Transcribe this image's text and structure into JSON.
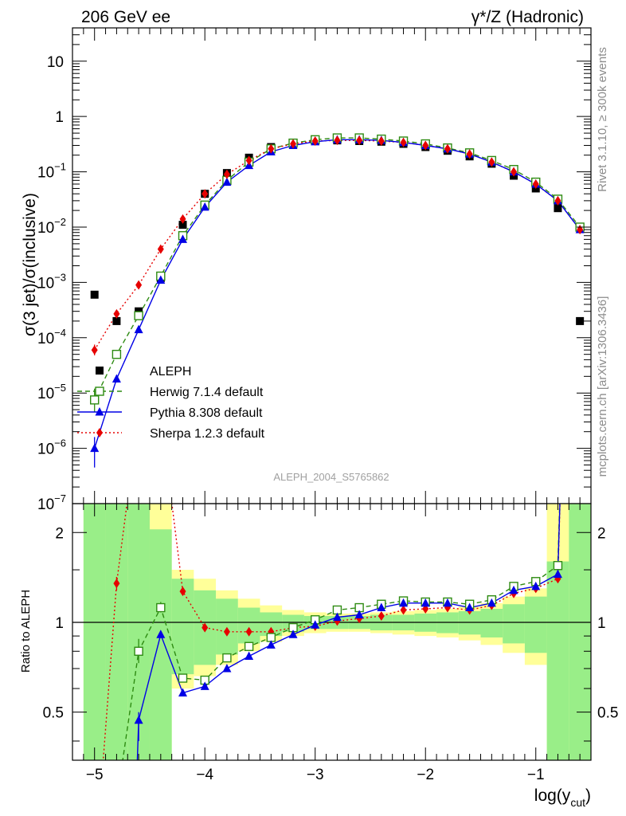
{
  "header": {
    "left": "206 GeV ee",
    "right": "γ*/Z (Hadronic)"
  },
  "side_labels": {
    "rivet": "Rivet 3.1.10, ≥ 300k events",
    "mcplots": "mcplots.cern.ch [arXiv:1306.3436]"
  },
  "watermark": "ALEPH_2004_S5765862",
  "chart_data": [
    {
      "type": "scatter",
      "panel": "main",
      "ylabel": "σ(3 jet)/σ(inclusive)",
      "xlabel": "",
      "yscale": "log",
      "ylim": [
        1e-07,
        40
      ],
      "xlim": [
        -5.2,
        -0.5
      ],
      "yticks": [
        {
          "v": 1e-07,
          "base": "10",
          "exp": "−7"
        },
        {
          "v": 1e-06,
          "base": "10",
          "exp": "−6"
        },
        {
          "v": 1e-05,
          "base": "10",
          "exp": "−5"
        },
        {
          "v": 0.0001,
          "base": "10",
          "exp": "−4"
        },
        {
          "v": 0.001,
          "base": "10",
          "exp": "−3"
        },
        {
          "v": 0.01,
          "base": "10",
          "exp": "−2"
        },
        {
          "v": 0.1,
          "base": "10",
          "exp": "−1"
        },
        {
          "v": 1,
          "base": "1",
          "exp": ""
        },
        {
          "v": 10,
          "base": "10",
          "exp": ""
        }
      ],
      "legend_position": "lower-left",
      "x": [
        -5.0,
        -4.8,
        -4.6,
        -4.4,
        -4.2,
        -4.0,
        -3.8,
        -3.6,
        -3.4,
        -3.2,
        -3.0,
        -2.8,
        -2.6,
        -2.4,
        -2.2,
        -2.0,
        -1.8,
        -1.6,
        -1.4,
        -1.2,
        -1.0,
        -0.8,
        -0.6
      ],
      "series": [
        {
          "name": "ALEPH",
          "marker": "square-filled",
          "color": "#000000",
          "values": [
            0.0006,
            0.0002,
            0.0003,
            0.0012,
            0.011,
            0.04,
            0.095,
            0.18,
            0.28,
            0.32,
            0.36,
            0.37,
            0.36,
            0.35,
            0.32,
            0.28,
            0.24,
            0.19,
            0.14,
            0.085,
            0.05,
            0.022,
            0.0002
          ]
        },
        {
          "name": "Herwig 7.1.4 default",
          "marker": "square-open",
          "line": "dashed",
          "color": "#2e8b12",
          "values": [
            7.5e-06,
            5e-05,
            0.00025,
            0.0013,
            0.007,
            0.025,
            0.07,
            0.15,
            0.26,
            0.33,
            0.38,
            0.41,
            0.41,
            0.39,
            0.36,
            0.32,
            0.27,
            0.22,
            0.16,
            0.11,
            0.065,
            0.032,
            0.01
          ]
        },
        {
          "name": "Pythia 8.308 default",
          "marker": "triangle-filled",
          "line": "solid",
          "color": "#0000e6",
          "values": [
            1e-06,
            1.8e-05,
            0.00014,
            0.0011,
            0.006,
            0.023,
            0.065,
            0.13,
            0.23,
            0.3,
            0.35,
            0.38,
            0.38,
            0.37,
            0.34,
            0.3,
            0.26,
            0.21,
            0.15,
            0.1,
            0.06,
            0.03,
            0.009
          ]
        },
        {
          "name": "Sherpa 1.2.3 default",
          "marker": "diamond-filled",
          "line": "dotted",
          "color": "#e60000",
          "values": [
            6e-05,
            0.00027,
            0.0009,
            0.004,
            0.014,
            0.04,
            0.09,
            0.16,
            0.26,
            0.32,
            0.36,
            0.37,
            0.37,
            0.36,
            0.34,
            0.3,
            0.26,
            0.21,
            0.15,
            0.1,
            0.06,
            0.03,
            0.009
          ]
        }
      ],
      "error_bars": {
        "Herwig 7.1.4 default": [
          [
            -5.0,
            4.5e-06,
            1.2e-05
          ]
        ],
        "Pythia 8.308 default": [
          [
            -5.0,
            4.5e-07,
            1.6e-06
          ]
        ],
        "Sherpa 1.2.3 default": [
          [
            -5.0,
            4.8e-05,
            7.5e-05
          ]
        ]
      }
    },
    {
      "type": "line",
      "panel": "ratio",
      "ylabel": "Ratio to ALEPH",
      "xlabel": "log(y_cut)",
      "xlabel_base": "log(y",
      "xlabel_sub": "cut",
      "xlabel_end": ")",
      "yscale": "log",
      "ylim": [
        0.345,
        2.5
      ],
      "xlim": [
        -5.2,
        -0.5
      ],
      "yticks": [
        {
          "v": 0.5,
          "label": "0.5"
        },
        {
          "v": 1,
          "label": "1"
        },
        {
          "v": 2,
          "label": "2"
        }
      ],
      "xticks": [
        {
          "v": -5,
          "label": "−5"
        },
        {
          "v": -4,
          "label": "−4"
        },
        {
          "v": -3,
          "label": "−3"
        },
        {
          "v": -2,
          "label": "−2"
        },
        {
          "v": -1,
          "label": "−1"
        }
      ],
      "uncertainty_bands": {
        "yellow_color": "#ffff99",
        "green_color": "#99ee88",
        "bins": [
          {
            "x0": -5.1,
            "x1": -4.9,
            "y0": 0.2,
            "y1": 5,
            "g0": 0.2,
            "g1": 5
          },
          {
            "x0": -4.9,
            "x1": -4.7,
            "y0": 0.2,
            "y1": 5,
            "g0": 0.2,
            "g1": 5
          },
          {
            "x0": -4.7,
            "x1": -4.5,
            "y0": 0.2,
            "y1": 5,
            "g0": 0.2,
            "g1": 5
          },
          {
            "x0": -4.5,
            "x1": -4.3,
            "y0": 0.2,
            "y1": 5,
            "g0": 0.2,
            "g1": 2.05
          },
          {
            "x0": -4.3,
            "x1": -4.1,
            "y0": 0.6,
            "y1": 1.5,
            "g0": 0.67,
            "g1": 1.4
          },
          {
            "x0": -4.1,
            "x1": -3.9,
            "y0": 0.66,
            "y1": 1.4,
            "g0": 0.72,
            "g1": 1.28
          },
          {
            "x0": -3.9,
            "x1": -3.7,
            "y0": 0.72,
            "y1": 1.28,
            "g0": 0.78,
            "g1": 1.2
          },
          {
            "x0": -3.7,
            "x1": -3.5,
            "y0": 0.8,
            "y1": 1.2,
            "g0": 0.85,
            "g1": 1.12
          },
          {
            "x0": -3.5,
            "x1": -3.3,
            "y0": 0.86,
            "y1": 1.14,
            "g0": 0.9,
            "g1": 1.08
          },
          {
            "x0": -3.3,
            "x1": -3.1,
            "y0": 0.9,
            "y1": 1.1,
            "g0": 0.93,
            "g1": 1.06
          },
          {
            "x0": -3.1,
            "x1": -2.9,
            "y0": 0.92,
            "y1": 1.08,
            "g0": 0.95,
            "g1": 1.05
          },
          {
            "x0": -2.9,
            "x1": -2.7,
            "y0": 0.93,
            "y1": 1.07,
            "g0": 0.95,
            "g1": 1.05
          },
          {
            "x0": -2.7,
            "x1": -2.5,
            "y0": 0.93,
            "y1": 1.07,
            "g0": 0.95,
            "g1": 1.05
          },
          {
            "x0": -2.5,
            "x1": -2.3,
            "y0": 0.92,
            "y1": 1.08,
            "g0": 0.94,
            "g1": 1.06
          },
          {
            "x0": -2.3,
            "x1": -2.1,
            "y0": 0.91,
            "y1": 1.09,
            "g0": 0.94,
            "g1": 1.06
          },
          {
            "x0": -2.1,
            "x1": -1.9,
            "y0": 0.9,
            "y1": 1.1,
            "g0": 0.93,
            "g1": 1.07
          },
          {
            "x0": -1.9,
            "x1": -1.7,
            "y0": 0.89,
            "y1": 1.11,
            "g0": 0.92,
            "g1": 1.08
          },
          {
            "x0": -1.7,
            "x1": -1.5,
            "y0": 0.87,
            "y1": 1.13,
            "g0": 0.91,
            "g1": 1.09
          },
          {
            "x0": -1.5,
            "x1": -1.3,
            "y0": 0.84,
            "y1": 1.16,
            "g0": 0.89,
            "g1": 1.11
          },
          {
            "x0": -1.3,
            "x1": -1.1,
            "y0": 0.79,
            "y1": 1.22,
            "g0": 0.85,
            "g1": 1.15
          },
          {
            "x0": -1.1,
            "x1": -0.9,
            "y0": 0.72,
            "y1": 1.3,
            "g0": 0.79,
            "g1": 1.22
          },
          {
            "x0": -0.9,
            "x1": -0.7,
            "y0": 0.2,
            "y1": 5,
            "g0": 0.2,
            "g1": 1.6
          },
          {
            "x0": -0.7,
            "x1": -0.5,
            "y0": 0.2,
            "y1": 5,
            "g0": 0.2,
            "g1": 5
          }
        ]
      },
      "series": [
        {
          "name": "Herwig 7.1.4 default",
          "points": [
            [
              -4.8,
              0.25
            ],
            [
              -4.6,
              0.8
            ],
            [
              -4.4,
              1.12
            ],
            [
              -4.2,
              0.65
            ],
            [
              -4.0,
              0.64
            ],
            [
              -3.8,
              0.76
            ],
            [
              -3.6,
              0.83
            ],
            [
              -3.4,
              0.89
            ],
            [
              -3.2,
              0.96
            ],
            [
              -3.0,
              1.02
            ],
            [
              -2.8,
              1.1
            ],
            [
              -2.6,
              1.12
            ],
            [
              -2.4,
              1.15
            ],
            [
              -2.2,
              1.18
            ],
            [
              -2.0,
              1.17
            ],
            [
              -1.8,
              1.17
            ],
            [
              -1.6,
              1.15
            ],
            [
              -1.4,
              1.19
            ],
            [
              -1.2,
              1.32
            ],
            [
              -1.0,
              1.37
            ],
            [
              -0.8,
              1.55
            ],
            [
              -0.72,
              15
            ]
          ],
          "errors": [
            [
              -4.6,
              0.73,
              0.88
            ],
            [
              -4.4,
              1.08,
              1.17
            ]
          ]
        },
        {
          "name": "Pythia 8.308 default",
          "points": [
            [
              -4.62,
              0.28
            ],
            [
              -4.6,
              0.47
            ],
            [
              -4.4,
              0.91
            ],
            [
              -4.2,
              0.58
            ],
            [
              -4.0,
              0.61
            ],
            [
              -3.8,
              0.7
            ],
            [
              -3.6,
              0.77
            ],
            [
              -3.4,
              0.84
            ],
            [
              -3.2,
              0.91
            ],
            [
              -3.0,
              0.98
            ],
            [
              -2.8,
              1.04
            ],
            [
              -2.6,
              1.06
            ],
            [
              -2.4,
              1.12
            ],
            [
              -2.2,
              1.16
            ],
            [
              -2.0,
              1.16
            ],
            [
              -1.8,
              1.16
            ],
            [
              -1.6,
              1.12
            ],
            [
              -1.4,
              1.16
            ],
            [
              -1.2,
              1.28
            ],
            [
              -1.0,
              1.32
            ],
            [
              -0.8,
              1.45
            ],
            [
              -0.72,
              15
            ]
          ],
          "errors": [
            [
              -4.6,
              0.4,
              0.5
            ]
          ]
        },
        {
          "name": "Sherpa 1.2.3 default",
          "points": [
            [
              -4.95,
              0.25
            ],
            [
              -4.8,
              1.35
            ],
            [
              -4.6,
              5
            ],
            [
              -4.4,
              5
            ],
            [
              -4.2,
              1.27
            ],
            [
              -4.0,
              0.96
            ],
            [
              -3.8,
              0.93
            ],
            [
              -3.6,
              0.93
            ],
            [
              -3.4,
              0.93
            ],
            [
              -3.2,
              0.96
            ],
            [
              -3.0,
              0.97
            ],
            [
              -2.8,
              1.01
            ],
            [
              -2.6,
              1.03
            ],
            [
              -2.4,
              1.05
            ],
            [
              -2.2,
              1.1
            ],
            [
              -2.0,
              1.11
            ],
            [
              -1.8,
              1.12
            ],
            [
              -1.6,
              1.1
            ],
            [
              -1.4,
              1.14
            ],
            [
              -1.2,
              1.25
            ],
            [
              -1.0,
              1.3
            ],
            [
              -0.8,
              1.4
            ],
            [
              -0.72,
              15
            ]
          ],
          "errors": [
            [
              -4.8,
              1.28,
              1.42
            ]
          ]
        }
      ]
    }
  ]
}
